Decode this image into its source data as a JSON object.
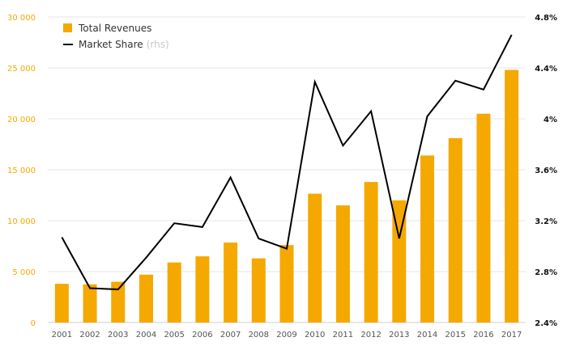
{
  "chart_data": {
    "type": "bar",
    "categories": [
      "2001",
      "2002",
      "2003",
      "2004",
      "2005",
      "2006",
      "2007",
      "2008",
      "2009",
      "2010",
      "2011",
      "2012",
      "2013",
      "2014",
      "2015",
      "2016",
      "2017"
    ],
    "series": [
      {
        "name": "Total Revenues",
        "type": "bar",
        "axis": "left",
        "color": "#F5A800",
        "values": [
          3800,
          3750,
          4000,
          4700,
          5900,
          6500,
          7850,
          6300,
          7600,
          12650,
          11500,
          13800,
          12000,
          16400,
          18100,
          20500,
          24800
        ]
      },
      {
        "name": "Market Share",
        "type": "line",
        "axis": "right",
        "color": "#000000",
        "values": [
          3.07,
          2.67,
          2.66,
          2.91,
          3.18,
          3.15,
          3.54,
          3.06,
          2.98,
          4.29,
          3.79,
          4.06,
          3.06,
          4.02,
          4.3,
          4.23,
          4.66
        ]
      }
    ],
    "y_left": {
      "min": 0,
      "max": 30000,
      "ticks": [
        0,
        5000,
        10000,
        15000,
        20000,
        25000,
        30000
      ],
      "tick_labels": [
        "0",
        "5 000",
        "10 000",
        "15 000",
        "20 000",
        "25 000",
        "30 000"
      ],
      "color": "#F5A800"
    },
    "y_right": {
      "min": 2.4,
      "max": 4.8,
      "ticks": [
        2.4,
        2.8,
        3.2,
        3.6,
        4.0,
        4.4,
        4.8
      ],
      "tick_labels": [
        "2.4%",
        "2.8%",
        "3.2%",
        "3.6%",
        "4%",
        "4.4%",
        "4.8%"
      ]
    },
    "legend": {
      "position": "top-left",
      "items": [
        {
          "label": "Total Revenues",
          "note": ""
        },
        {
          "label": "Market Share",
          "note": "(rhs)"
        }
      ]
    },
    "grid": true,
    "title": "",
    "xlabel": "",
    "ylabel": ""
  }
}
